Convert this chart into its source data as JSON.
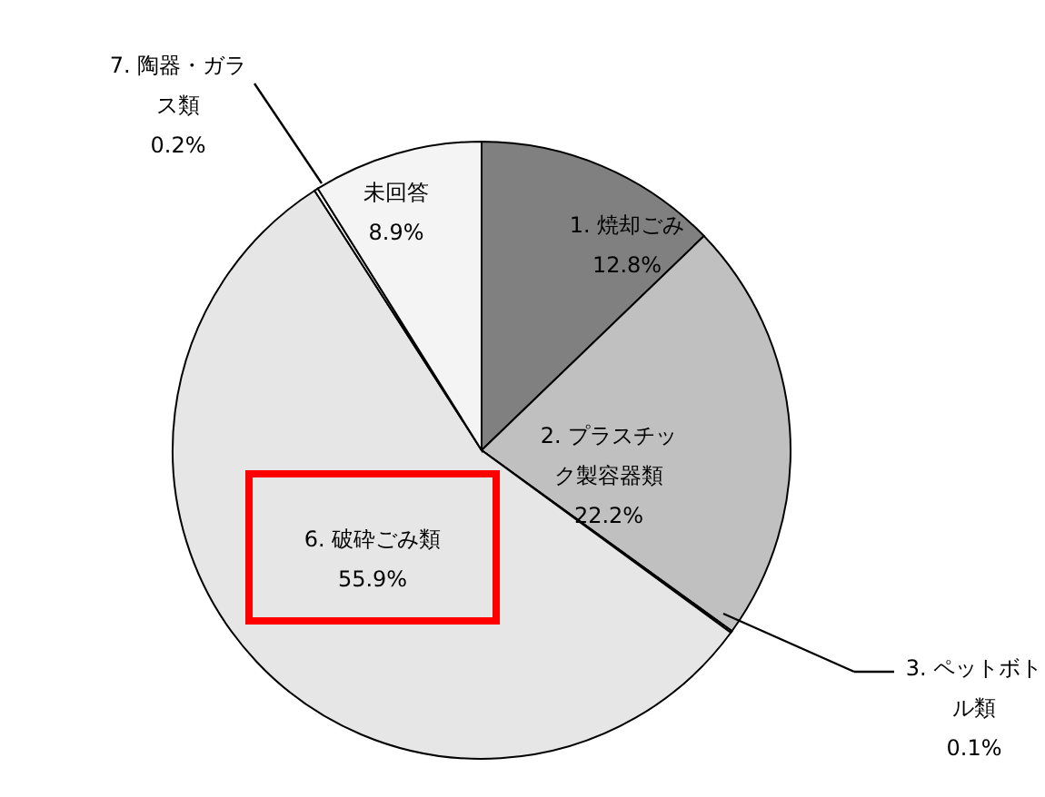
{
  "chart_data": {
    "type": "pie",
    "categories": [
      "1. 焼却ごみ",
      "2. プラスチック製容器類",
      "3. ペットボトル類",
      "6. 破砕ごみ類",
      "7. 陶器・ガラス類",
      "未回答"
    ],
    "values": [
      12.8,
      22.2,
      0.1,
      55.9,
      0.2,
      8.9
    ],
    "colors": [
      "#808080",
      "#c0c0c0",
      "#ffffff",
      "#e6e6e6",
      "#ffffff",
      "#f4f4f4"
    ],
    "value_labels": [
      "12.8%",
      "22.2%",
      "0.1%",
      "55.9%",
      "0.2%",
      "8.9%"
    ]
  }
}
